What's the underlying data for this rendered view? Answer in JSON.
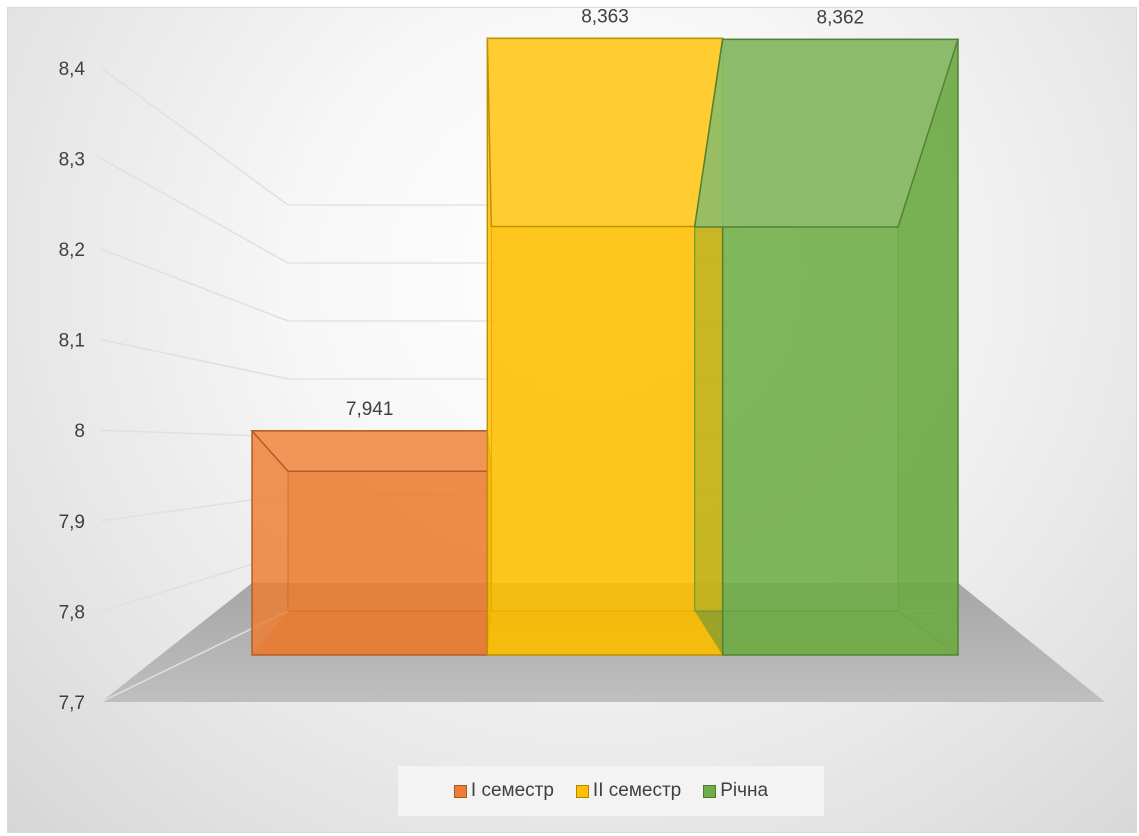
{
  "chart_data": {
    "type": "bar",
    "style": "3d-column",
    "categories": [
      "I семестр",
      "II семестр",
      "Річна"
    ],
    "values": [
      7.941,
      8.363,
      8.362
    ],
    "value_labels": [
      "7,941",
      "8,363",
      "8,362"
    ],
    "series": [
      {
        "name": "I семестр",
        "value": 7.941,
        "label": "7,941",
        "color": "#ED7D31"
      },
      {
        "name": "II семестр",
        "value": 8.363,
        "label": "8,363",
        "color": "#FFC000"
      },
      {
        "name": "Річна",
        "value": 8.362,
        "label": "8,362",
        "color": "#70AD47"
      }
    ],
    "yticks": [
      "7,7",
      "7,8",
      "7,9",
      "8",
      "8,1",
      "8,2",
      "8,3",
      "8,4"
    ],
    "ylim": [
      7.7,
      8.4
    ],
    "title": "",
    "xlabel": "",
    "ylabel": "",
    "grid": true,
    "legend_position": "bottom"
  }
}
